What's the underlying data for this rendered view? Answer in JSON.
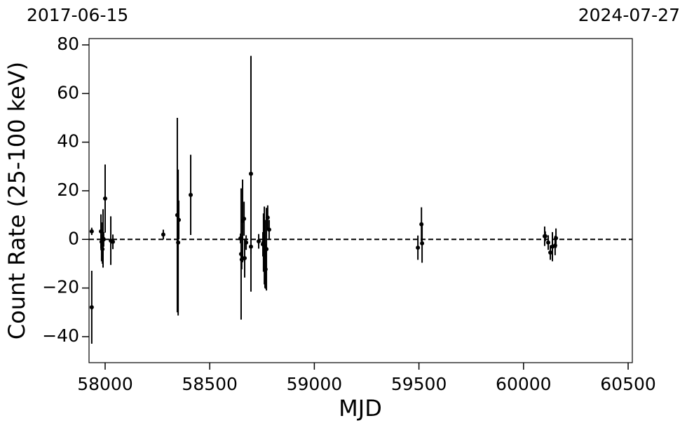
{
  "chart_data": {
    "type": "scatter",
    "date_labels": [
      "2017-06-15",
      "2024-07-27"
    ],
    "x_label": "MJD",
    "y_label": "Count Rate (25-100 keV)",
    "xlim": [
      57923,
      60520
    ],
    "ylim": [
      -50.7,
      82.6
    ],
    "xticks": [
      58000,
      58500,
      59000,
      59500,
      60000,
      60500
    ],
    "yticks": [
      {
        "value": -40,
        "label": "−40"
      },
      {
        "value": -20,
        "label": "−20"
      },
      0,
      20,
      40,
      60,
      80
    ],
    "reference_line": {
      "y": 0,
      "style": "dashed",
      "color": "#000000"
    },
    "series": [
      {
        "color": "#000000",
        "x": [
          57936,
          57936,
          57980,
          57983,
          57987,
          57990,
          57993,
          58000,
          58027,
          58037,
          58278,
          58345,
          58349,
          58352,
          58409,
          58647,
          58650,
          58653,
          58657,
          58664,
          58667,
          58674,
          58697,
          58697,
          58734,
          58754,
          58757,
          58761,
          58764,
          58767,
          58771,
          58777,
          58784,
          59495,
          59512,
          59515,
          60101,
          60104,
          60118,
          60128,
          60138,
          60151,
          60155
        ],
        "values": [
          3.3,
          -27.9,
          3.3,
          -1,
          -4,
          0.4,
          0,
          16.8,
          -0.5,
          -1,
          2,
          10,
          -1.3,
          8,
          18.3,
          0.4,
          -6,
          -8.3,
          7.6,
          8.5,
          -7.7,
          -1.3,
          27,
          -3,
          -0.8,
          -2,
          -1.3,
          -2.5,
          -6,
          -12.3,
          -4,
          9,
          4,
          -3.4,
          6.2,
          -1.6,
          1.3,
          1.3,
          -1.3,
          -5.4,
          -3,
          -2.5,
          0.5
        ],
        "errors": [
          1.5,
          15,
          7,
          8,
          6,
          12,
          3,
          14,
          10,
          3,
          2,
          40,
          30,
          8,
          16.5,
          2,
          27,
          4,
          17,
          7,
          8,
          3,
          48.5,
          3,
          3,
          5,
          12,
          16,
          14,
          8,
          17,
          5,
          4,
          5,
          7,
          8,
          4,
          2,
          3,
          3,
          6,
          4,
          4
        ]
      }
    ]
  }
}
